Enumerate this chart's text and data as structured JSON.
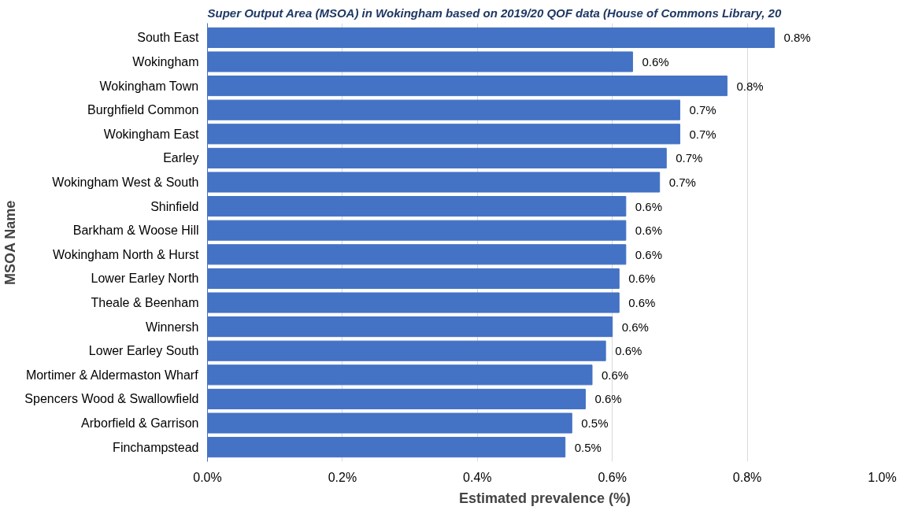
{
  "chart_data": {
    "type": "bar",
    "orientation": "horizontal",
    "title": "Super Output Area (MSOA) in Wokingham based on 2019/20 QOF data (House of Commons Library, 20",
    "xlabel": "Estimated prevalence (%)",
    "ylabel": "MSOA Name",
    "categories": [
      "South East",
      "Wokingham",
      "Wokingham Town",
      "Burghfield Common",
      "Wokingham East",
      "Earley",
      "Wokingham West & South",
      "Shinfield",
      "Barkham & Woose Hill",
      "Wokingham North & Hurst",
      "Lower Earley North",
      "Theale & Beenham",
      "Winnersh",
      "Lower Earley South",
      "Mortimer & Aldermaston Wharf",
      "Spencers Wood & Swallowfield",
      "Arborfield & Garrison",
      "Finchampstead"
    ],
    "values": [
      0.84,
      0.63,
      0.77,
      0.7,
      0.7,
      0.68,
      0.67,
      0.62,
      0.62,
      0.62,
      0.61,
      0.61,
      0.6,
      0.59,
      0.57,
      0.56,
      0.54,
      0.53
    ],
    "value_labels": [
      "0.8%",
      "0.6%",
      "0.8%",
      "0.7%",
      "0.7%",
      "0.7%",
      "0.7%",
      "0.6%",
      "0.6%",
      "0.6%",
      "0.6%",
      "0.6%",
      "0.6%",
      "0.6%",
      "0.6%",
      "0.6%",
      "0.5%",
      "0.5%"
    ],
    "color": "#4472c4",
    "xlim": [
      0,
      1.0
    ],
    "xticks": [
      {
        "value": 0,
        "label": "0.0%"
      },
      {
        "value": 0.2,
        "label": "0.2%"
      },
      {
        "value": 0.4,
        "label": "0.4%"
      },
      {
        "value": 0.6,
        "label": "0.6%"
      },
      {
        "value": 0.8,
        "label": "0.8%"
      },
      {
        "value": 1.0,
        "label": "1.0%"
      }
    ],
    "grid": "x"
  }
}
